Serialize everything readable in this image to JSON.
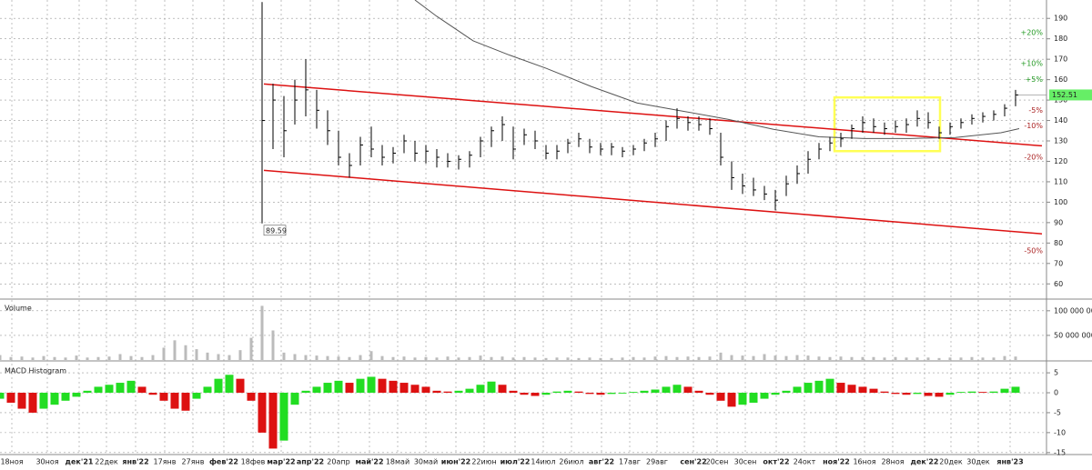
{
  "chart_data": {
    "type": "ohlc",
    "grid": true,
    "xlim": [
      0,
      287.5
    ],
    "xticks": [
      {
        "value": 3.25,
        "label": "18ноя"
      },
      {
        "value": 13,
        "label": "30ноя"
      },
      {
        "value": 21.75,
        "label": "дек'21"
      },
      {
        "value": 29.25,
        "label": "22дек"
      },
      {
        "value": 37.25,
        "label": "янв'22"
      },
      {
        "value": 45.25,
        "label": "17янв"
      },
      {
        "value": 53,
        "label": "27янв"
      },
      {
        "value": 61.5,
        "label": "фев'22"
      },
      {
        "value": 69.5,
        "label": "18фев"
      },
      {
        "value": 77.25,
        "label": "мар'22"
      },
      {
        "value": 85.25,
        "label": "апр'22"
      },
      {
        "value": 93,
        "label": "20апр"
      },
      {
        "value": 101.5,
        "label": "май'22"
      },
      {
        "value": 109.25,
        "label": "18май"
      },
      {
        "value": 117,
        "label": "30май"
      },
      {
        "value": 125.25,
        "label": "июн'22"
      },
      {
        "value": 133,
        "label": "22июн"
      },
      {
        "value": 141.5,
        "label": "июл'22"
      },
      {
        "value": 149.25,
        "label": "14июл"
      },
      {
        "value": 157,
        "label": "26июл"
      },
      {
        "value": 165.25,
        "label": "авг'22"
      },
      {
        "value": 173,
        "label": "17авг"
      },
      {
        "value": 180.5,
        "label": "29авг"
      },
      {
        "value": 190.5,
        "label": "сен'22"
      },
      {
        "value": 197,
        "label": "20сен"
      },
      {
        "value": 204.75,
        "label": "30сен"
      },
      {
        "value": 213.25,
        "label": "окт'22"
      },
      {
        "value": 221,
        "label": "24окт"
      },
      {
        "value": 229.75,
        "label": "ноя'22"
      },
      {
        "value": 237.5,
        "label": "16ноя"
      },
      {
        "value": 245.25,
        "label": "28ноя"
      },
      {
        "value": 254,
        "label": "дек'22"
      },
      {
        "value": 261.25,
        "label": "20дек"
      },
      {
        "value": 268.75,
        "label": "30дек"
      },
      {
        "value": 277.5,
        "label": "янв'23"
      }
    ],
    "x": [
      0,
      3,
      6,
      9,
      12,
      15,
      18,
      21,
      24,
      27,
      30,
      33,
      36,
      39,
      42,
      45,
      48,
      51,
      54,
      57,
      60,
      63,
      66,
      69,
      72,
      75,
      78,
      81,
      84,
      87,
      90,
      93,
      96,
      99,
      102,
      105,
      108,
      111,
      114,
      117,
      120,
      123,
      126,
      129,
      132,
      135,
      138,
      141,
      144,
      147,
      150,
      153,
      156,
      159,
      162,
      165,
      168,
      171,
      174,
      177,
      180,
      183,
      186,
      189,
      192,
      195,
      198,
      201,
      204,
      207,
      210,
      213,
      216,
      219,
      222,
      225,
      228,
      231,
      234,
      237,
      240,
      243,
      246,
      249,
      252,
      255,
      258,
      261,
      264,
      267,
      270,
      273,
      276,
      279
    ],
    "high": [
      null,
      null,
      null,
      null,
      null,
      null,
      null,
      null,
      null,
      null,
      null,
      null,
      null,
      null,
      null,
      null,
      null,
      null,
      null,
      null,
      null,
      null,
      null,
      null,
      198,
      158,
      152,
      160,
      170,
      155,
      145,
      135,
      124,
      132,
      137,
      128,
      127,
      133,
      130,
      128,
      126,
      124,
      123,
      125,
      132,
      137,
      142,
      137,
      136,
      135,
      128,
      128,
      131,
      134,
      131,
      129,
      129,
      127,
      128,
      131,
      134,
      140,
      146,
      142,
      142,
      141,
      134,
      120,
      114,
      112,
      108,
      106,
      113,
      118,
      125,
      129,
      132,
      134,
      138,
      142,
      141,
      139,
      140,
      141,
      145,
      144,
      137,
      139,
      141,
      143,
      144,
      145,
      148,
      155
    ],
    "low": [
      null,
      null,
      null,
      null,
      null,
      null,
      null,
      null,
      null,
      null,
      null,
      null,
      null,
      null,
      null,
      null,
      null,
      null,
      null,
      null,
      null,
      null,
      null,
      null,
      89.59,
      126,
      122,
      138,
      142,
      136,
      128,
      118,
      112,
      118,
      122,
      118,
      119,
      124,
      120,
      119,
      117,
      117,
      116,
      117,
      122,
      127,
      130,
      121,
      128,
      126,
      121,
      121,
      124,
      127,
      124,
      123,
      123,
      122,
      123,
      125,
      127,
      130,
      136,
      135,
      135,
      133,
      118,
      106,
      104,
      103,
      101,
      96,
      103,
      109,
      114,
      121,
      125,
      127,
      131,
      134,
      134,
      133,
      134,
      134,
      137,
      136,
      131,
      133,
      136,
      138,
      139,
      140,
      142,
      147
    ],
    "close": [
      null,
      null,
      null,
      null,
      null,
      null,
      null,
      null,
      null,
      null,
      null,
      null,
      null,
      null,
      null,
      null,
      null,
      null,
      null,
      null,
      null,
      null,
      null,
      null,
      140,
      150,
      135,
      150,
      155,
      145,
      135,
      122,
      118,
      128,
      126,
      122,
      124,
      130,
      124,
      125,
      122,
      120,
      121,
      123,
      130,
      135,
      138,
      126,
      133,
      130,
      124,
      125,
      129,
      131,
      127,
      126,
      127,
      125,
      126,
      129,
      131,
      137,
      141,
      139,
      138,
      136,
      122,
      112,
      108,
      106,
      104,
      101,
      109,
      114,
      121,
      126,
      129,
      131,
      136,
      139,
      137,
      136,
      137,
      138,
      141,
      139,
      134,
      137,
      139,
      141,
      142,
      143,
      146,
      152.51
    ],
    "color": "#000000",
    "ylim": [
      53,
      199
    ],
    "yticks": [
      60,
      70,
      80,
      90,
      100,
      110,
      120,
      130,
      140,
      150,
      160,
      170,
      180,
      190
    ],
    "price_label_color": "#66ee66",
    "sma": {
      "color": "#555555",
      "x": [
        114,
        120,
        130,
        140,
        150,
        162.5,
        175,
        187.5,
        200,
        212.5,
        225,
        237.5,
        250,
        262.5,
        275,
        280
      ],
      "values": [
        199,
        191,
        179,
        172,
        165.6,
        156.6,
        148.6,
        144.6,
        140.6,
        135.7,
        132,
        131.2,
        131.2,
        131.7,
        134,
        136
      ]
    },
    "trendlines": [
      {
        "color": "#dd1111",
        "x": [
          72.5,
          286.25
        ],
        "y": [
          157.9,
          127.6
        ]
      },
      {
        "color": "#dd1111",
        "x": [
          72.5,
          286.25
        ],
        "y": [
          115.6,
          84.5
        ]
      }
    ],
    "highlight": {
      "color": "#ffff55",
      "x": [
        229.25,
        258.25
      ],
      "y": [
        125,
        151.3
      ]
    },
    "percent_levels": [
      {
        "value": 20,
        "label": "+20%"
      },
      {
        "value": 10,
        "label": "+10%"
      },
      {
        "value": 5,
        "label": "+5%"
      },
      {
        "value": -5,
        "label": "-5%"
      },
      {
        "value": -10,
        "label": "-10%"
      },
      {
        "value": -20,
        "label": "-20%"
      },
      {
        "value": -50,
        "label": "-50%"
      }
    ],
    "percent_up_color": "#229922",
    "percent_down_color": "#aa2222",
    "volume": {
      "title": "Volume",
      "color": "#bbbbbb",
      "ylim": [
        0,
        120000000
      ],
      "yticks": [
        {
          "value": 100000000,
          "label": "100 000 000"
        },
        {
          "value": 50000000,
          "label": "50 000 000"
        }
      ],
      "values": [
        10000000,
        6000000,
        7000000,
        5000000,
        8000000,
        6000000,
        5000000,
        9000000,
        5000000,
        6000000,
        7000000,
        12000000,
        8000000,
        6000000,
        10000000,
        25000000,
        40000000,
        30000000,
        22000000,
        15000000,
        12000000,
        10000000,
        20000000,
        45000000,
        110000000,
        60000000,
        15000000,
        12000000,
        10000000,
        9000000,
        8000000,
        7000000,
        6000000,
        10000000,
        18000000,
        8000000,
        6000000,
        7000000,
        5000000,
        6000000,
        5000000,
        7000000,
        5000000,
        6000000,
        9000000,
        6000000,
        7000000,
        5000000,
        6000000,
        5000000,
        4000000,
        5000000,
        5000000,
        4000000,
        5000000,
        4000000,
        4000000,
        5000000,
        6000000,
        5000000,
        7000000,
        8000000,
        6000000,
        7000000,
        6000000,
        7000000,
        15000000,
        10000000,
        9000000,
        8000000,
        12000000,
        9000000,
        8000000,
        10000000,
        9000000,
        7000000,
        6000000,
        7000000,
        6000000,
        6000000,
        6000000,
        5000000,
        6000000,
        5000000,
        5000000,
        5000000,
        4000000,
        5000000,
        5000000,
        6000000,
        5000000,
        5000000,
        8000000,
        7000000
      ]
    },
    "macd": {
      "title": "MACD Histogram",
      "up_color": "#22dd22",
      "down_color": "#dd1111",
      "ylim": [
        -15.5,
        7.3
      ],
      "yticks": [
        5,
        0,
        -5,
        -10,
        -15
      ],
      "values": [
        -1.5,
        -2.5,
        -4,
        -5,
        -4,
        -3,
        -2,
        -1,
        0.5,
        1.5,
        2,
        2.5,
        3,
        1.5,
        -0.5,
        -2,
        -4,
        -4.5,
        -1.5,
        1.5,
        3.5,
        4.5,
        3.5,
        -2,
        -10,
        -14,
        -12,
        -3,
        0.5,
        1.5,
        2.5,
        3,
        2.5,
        3.5,
        4,
        3.5,
        3,
        2.5,
        2,
        1.5,
        0.5,
        0.3,
        0.5,
        1,
        2,
        2.8,
        2,
        0.5,
        -0.5,
        -0.8,
        -0.5,
        0.3,
        0.5,
        0.3,
        -0.3,
        -0.5,
        -0.3,
        -0.2,
        0.2,
        0.5,
        0.8,
        1.5,
        2,
        1.5,
        0.5,
        -0.5,
        -2,
        -3.5,
        -3,
        -2.5,
        -1.5,
        -0.5,
        0.5,
        1.5,
        2.5,
        3,
        3.5,
        2.5,
        2,
        1.5,
        1,
        0.3,
        -0.3,
        -0.5,
        -0.3,
        -0.8,
        -1,
        -0.5,
        0.2,
        0.3,
        0.2,
        0.3,
        1,
        1.5
      ]
    }
  }
}
